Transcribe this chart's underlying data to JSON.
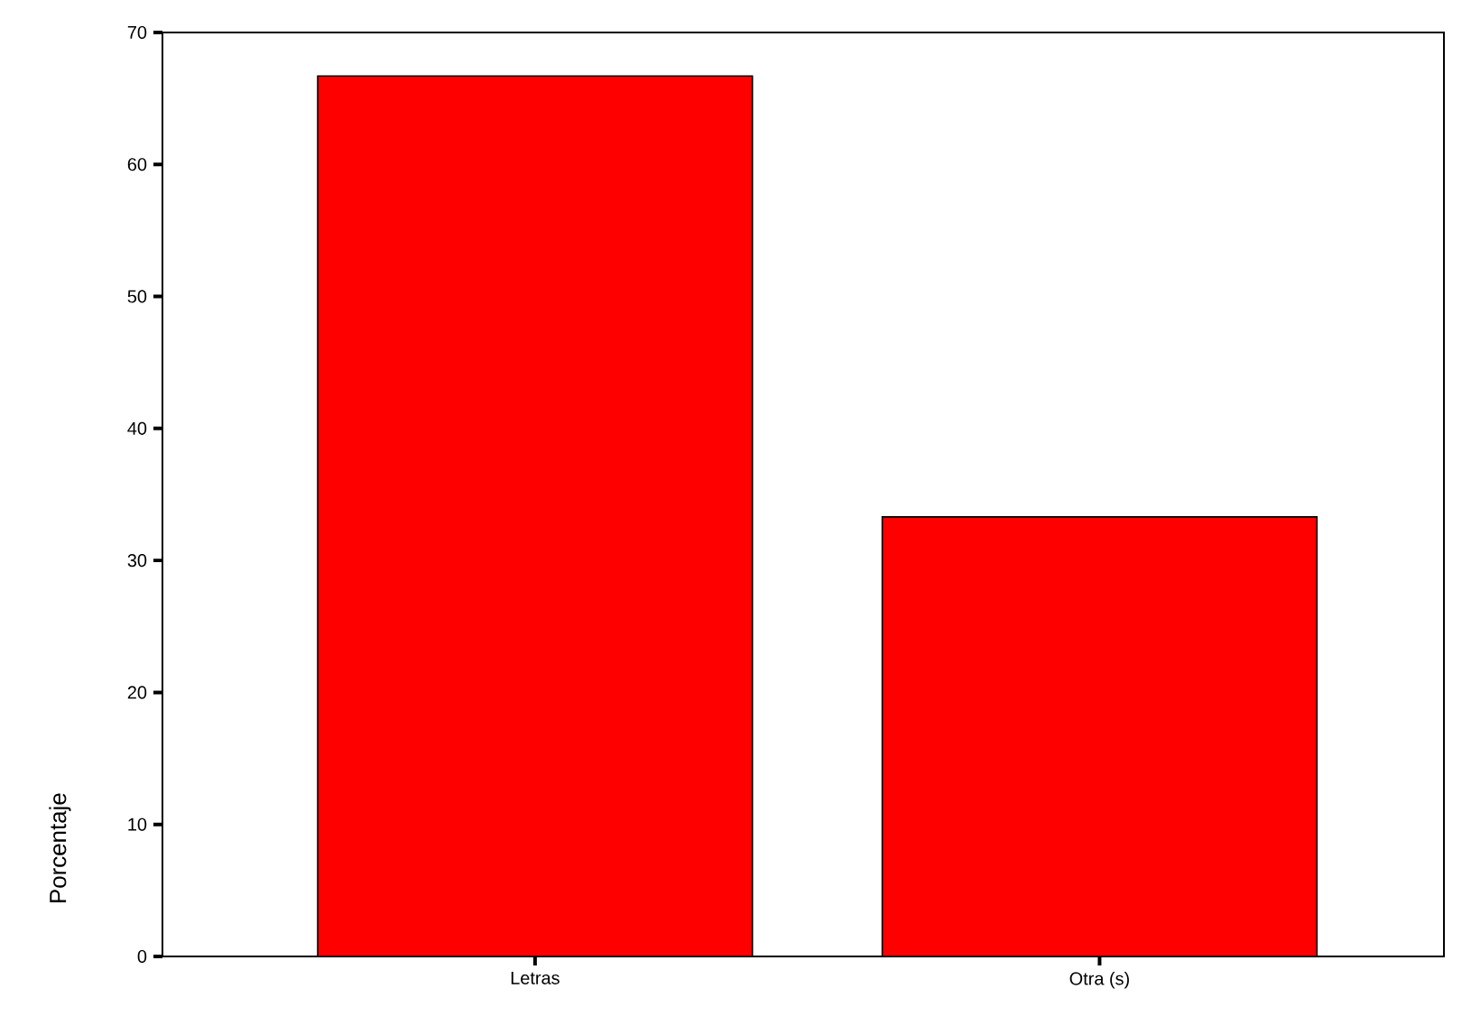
{
  "chart_data": {
    "type": "bar",
    "ylabel": "Porcentaje",
    "categories": [
      "Letras",
      "Otra (s)"
    ],
    "values": [
      66.7,
      33.3
    ],
    "color": "#ff0000",
    "ylim": [
      0,
      70
    ],
    "yticks": [
      0,
      10,
      20,
      30,
      40,
      50,
      60,
      70
    ],
    "grid": false
  }
}
